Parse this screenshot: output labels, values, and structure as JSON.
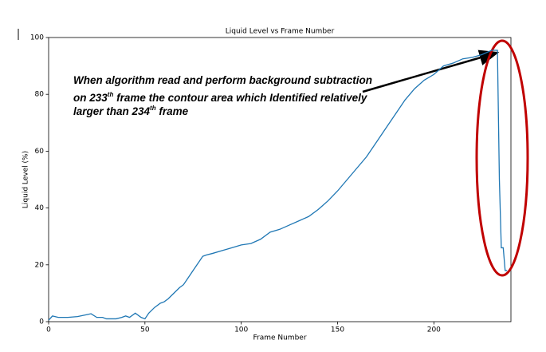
{
  "chart_data": {
    "type": "line",
    "title": "Liquid Level vs Frame Number",
    "x_label": "Frame Number",
    "y_label": "Liquid Level (%)",
    "x": [
      0,
      2,
      5,
      10,
      15,
      20,
      22,
      25,
      28,
      30,
      35,
      38,
      40,
      42,
      45,
      48,
      50,
      52,
      55,
      58,
      60,
      62,
      65,
      68,
      70,
      72,
      75,
      78,
      80,
      82,
      85,
      90,
      95,
      100,
      105,
      110,
      115,
      120,
      125,
      130,
      135,
      140,
      145,
      150,
      155,
      160,
      165,
      170,
      175,
      180,
      185,
      190,
      195,
      200,
      205,
      210,
      215,
      220,
      225,
      230,
      233,
      234,
      235,
      236,
      237,
      238
    ],
    "series": [
      {
        "name": "Liquid Level",
        "color": "#1f77b4",
        "values": [
          0.5,
          2,
          1.5,
          1.5,
          1.8,
          2.5,
          2.8,
          1.5,
          1.5,
          1,
          1,
          1.5,
          2,
          1.5,
          3,
          1.5,
          1,
          3,
          5,
          6.5,
          7,
          8,
          10,
          12,
          13,
          15,
          18,
          21,
          23,
          23.5,
          24,
          25,
          26,
          27,
          27.5,
          29,
          31.5,
          32.5,
          34,
          35.5,
          37,
          39.5,
          42.5,
          46,
          50,
          54,
          58,
          63,
          68,
          73,
          78,
          82,
          85,
          87,
          90,
          91,
          92.5,
          93,
          94,
          95.5,
          95.5,
          50,
          26,
          26,
          18,
          18
        ]
      }
    ],
    "xlim": [
      0,
      240
    ],
    "xticks": [
      0,
      50,
      100,
      150,
      200
    ],
    "ylim": [
      0,
      100
    ],
    "yticks": [
      0,
      20,
      40,
      60,
      80,
      100
    ],
    "grid": false,
    "annotation_lines": [
      [
        "When algorithm read and perform background subtraction"
      ],
      [
        "on 233",
        "th",
        " frame the contour area which Identified relatively"
      ],
      [
        "larger than 234",
        "th",
        " frame"
      ]
    ]
  }
}
